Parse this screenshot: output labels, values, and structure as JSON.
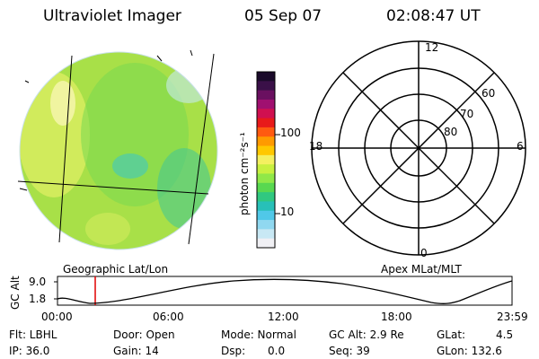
{
  "header": {
    "title": "Ultraviolet Imager",
    "date": "05 Sep 07",
    "time": "02:08:47 UT"
  },
  "image_panel": {
    "label": "Geographic Lat/Lon"
  },
  "colorbar": {
    "unit_label": "photon cm⁻²s⁻¹",
    "ticks": [
      "100",
      "10"
    ],
    "colors": [
      "#1a0a2a",
      "#3a1048",
      "#6a1060",
      "#a01070",
      "#d01050",
      "#e81a1a",
      "#ff5a10",
      "#ff9a00",
      "#ffc800",
      "#f4f060",
      "#c8f040",
      "#90e848",
      "#58d850",
      "#30c880",
      "#28c0b8",
      "#50c8e8",
      "#90d8f0",
      "#c8e8f4",
      "#f0f0f4"
    ]
  },
  "polar_panel": {
    "label": "Apex MLat/MLT",
    "mlt_labels": {
      "top": "12",
      "left": "18",
      "right": "6",
      "bottom": "0"
    },
    "lat_labels": [
      "60",
      "70",
      "80"
    ]
  },
  "altitude_plot": {
    "ylabel": "GC Alt",
    "yticks": [
      "9.0",
      "1.8"
    ],
    "xticks": [
      "00:00",
      "06:00",
      "12:00",
      "18:00",
      "23:59"
    ]
  },
  "info": {
    "row1": [
      "Flt: LBHL",
      "Door: Open",
      "Mode: Normal",
      "GC Alt: 2.9 Re",
      "GLat:",
      "4.5"
    ],
    "row2": [
      "IP: 36.0",
      "Gain: 14",
      "Dsp:",
      "0.0",
      "Seq: 39",
      "GLon: 132.6"
    ]
  }
}
